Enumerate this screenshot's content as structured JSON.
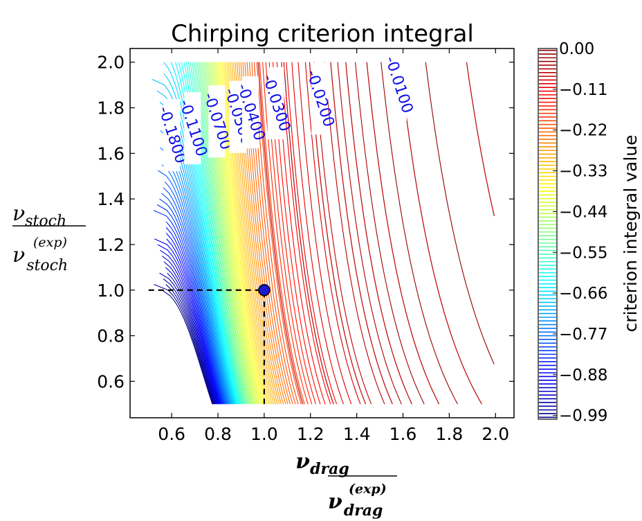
{
  "chart_data": {
    "type": "contour",
    "title": "Chirping criterion integral",
    "xlabel": {
      "numerator": "ν",
      "numerator_sub": "drag",
      "denominator": "ν",
      "denominator_sub": "drag",
      "denominator_sup": "(exp)"
    },
    "ylabel": {
      "numerator": "ν",
      "numerator_sub": "stoch",
      "denominator": "ν",
      "denominator_sub": "stoch",
      "denominator_sup": "(exp)"
    },
    "xlim": [
      0.42,
      2.08
    ],
    "ylim": [
      0.44,
      2.06
    ],
    "data_x_range": [
      0.5,
      2.0
    ],
    "data_y_range": [
      0.5,
      2.0
    ],
    "x_ticks": [
      "0.6",
      "0.8",
      "1.0",
      "1.2",
      "1.4",
      "1.6",
      "1.8",
      "2.0"
    ],
    "y_ticks": [
      "0.6",
      "0.8",
      "1.0",
      "1.2",
      "1.4",
      "1.6",
      "1.8",
      "2.0"
    ],
    "x_tick_values": [
      0.6,
      0.8,
      1.0,
      1.2,
      1.4,
      1.6,
      1.8,
      2.0
    ],
    "y_tick_values": [
      0.6,
      0.8,
      1.0,
      1.2,
      1.4,
      1.6,
      1.8,
      2.0
    ],
    "contour_levels_count": 100,
    "value_range": [
      -1.0,
      0.0
    ],
    "labeled_contours": [
      {
        "label": "-0.1800",
        "value": -0.18,
        "label_x": 0.6,
        "label_y": 1.68
      },
      {
        "label": "-0.1100",
        "value": -0.11,
        "label_x": 0.69,
        "label_y": 1.71
      },
      {
        "label": "-0.0700",
        "value": -0.07,
        "label_x": 0.795,
        "label_y": 1.74
      },
      {
        "label": "-0.0500",
        "value": -0.05,
        "label_x": 0.885,
        "label_y": 1.76
      },
      {
        "label": "-0.0400",
        "value": -0.04,
        "label_x": 0.94,
        "label_y": 1.78
      },
      {
        "label": "-0.0300",
        "value": -0.03,
        "label_x": 1.05,
        "label_y": 1.82
      },
      {
        "label": "-0.0200",
        "value": -0.02,
        "label_x": 1.24,
        "label_y": 1.84
      },
      {
        "label": "-0.0100",
        "value": -0.01,
        "label_x": 1.58,
        "label_y": 1.9
      }
    ],
    "marker": {
      "x": 1.0,
      "y": 1.0,
      "color": "#1a1ad0"
    },
    "reference_lines": [
      {
        "from": [
          0.5,
          1.0
        ],
        "to": [
          1.0,
          1.0
        ],
        "style": "dashed"
      },
      {
        "from": [
          1.0,
          0.5
        ],
        "to": [
          1.0,
          1.0
        ],
        "style": "dashed"
      }
    ],
    "colorbar": {
      "label": "criterion integral value",
      "ticks": [
        "0.00",
        "−0.11",
        "−0.22",
        "−0.33",
        "−0.44",
        "−0.55",
        "−0.66",
        "−0.77",
        "−0.88",
        "−0.99"
      ],
      "tick_values": [
        0.0,
        -0.11,
        -0.22,
        -0.33,
        -0.44,
        -0.55,
        -0.66,
        -0.77,
        -0.88,
        -0.99
      ],
      "range": [
        -1.0,
        0.0
      ],
      "colormap": "jet"
    }
  }
}
